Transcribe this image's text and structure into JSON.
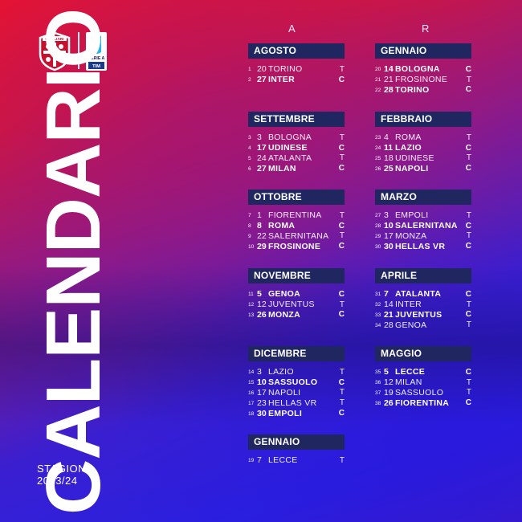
{
  "title": "CALENDARIO",
  "season": {
    "line1": "STAGIONE",
    "line2": "2023/24"
  },
  "logos": {
    "club_text": "CAGLIARI",
    "league_line1": "SERIE A",
    "league_line2": "TIM"
  },
  "columns": {
    "left": "A",
    "right": "R"
  },
  "colors": {
    "month_header": "#1f2660",
    "red": "#e8132f",
    "blue": "#2a20e0"
  },
  "left": [
    {
      "name": "AGOSTO",
      "matches": [
        {
          "round": "1",
          "day": "20",
          "team": "TORINO",
          "venue": "T"
        },
        {
          "round": "2",
          "day": "27",
          "team": "INTER",
          "venue": "C"
        }
      ]
    },
    {
      "name": "SETTEMBRE",
      "matches": [
        {
          "round": "3",
          "day": "3",
          "team": "BOLOGNA",
          "venue": "T"
        },
        {
          "round": "4",
          "day": "17",
          "team": "UDINESE",
          "venue": "C"
        },
        {
          "round": "5",
          "day": "24",
          "team": "ATALANTA",
          "venue": "T"
        },
        {
          "round": "6",
          "day": "27",
          "team": "MILAN",
          "venue": "C"
        }
      ]
    },
    {
      "name": "OTTOBRE",
      "matches": [
        {
          "round": "7",
          "day": "1",
          "team": "FIORENTINA",
          "venue": "T"
        },
        {
          "round": "8",
          "day": "8",
          "team": "ROMA",
          "venue": "C"
        },
        {
          "round": "9",
          "day": "22",
          "team": "SALERNITANA",
          "venue": "T"
        },
        {
          "round": "10",
          "day": "29",
          "team": "FROSINONE",
          "venue": "C"
        }
      ]
    },
    {
      "name": "NOVEMBRE",
      "matches": [
        {
          "round": "11",
          "day": "5",
          "team": "GENOA",
          "venue": "C"
        },
        {
          "round": "12",
          "day": "12",
          "team": "JUVENTUS",
          "venue": "T"
        },
        {
          "round": "13",
          "day": "26",
          "team": "MONZA",
          "venue": "C"
        }
      ]
    },
    {
      "name": "DICEMBRE",
      "matches": [
        {
          "round": "14",
          "day": "3",
          "team": "LAZIO",
          "venue": "T"
        },
        {
          "round": "15",
          "day": "10",
          "team": "SASSUOLO",
          "venue": "C"
        },
        {
          "round": "16",
          "day": "17",
          "team": "NAPOLI",
          "venue": "T"
        },
        {
          "round": "17",
          "day": "23",
          "team": "HELLAS VR",
          "venue": "T"
        },
        {
          "round": "18",
          "day": "30",
          "team": "EMPOLI",
          "venue": "C"
        }
      ]
    },
    {
      "name": "GENNAIO",
      "matches": [
        {
          "round": "19",
          "day": "7",
          "team": "LECCE",
          "venue": "T"
        }
      ]
    }
  ],
  "right": [
    {
      "name": "GENNAIO",
      "matches": [
        {
          "round": "20",
          "day": "14",
          "team": "BOLOGNA",
          "venue": "C"
        },
        {
          "round": "21",
          "day": "21",
          "team": "FROSINONE",
          "venue": "T"
        },
        {
          "round": "22",
          "day": "28",
          "team": "TORINO",
          "venue": "C"
        }
      ]
    },
    {
      "name": "FEBBRAIO",
      "matches": [
        {
          "round": "23",
          "day": "4",
          "team": "ROMA",
          "venue": "T"
        },
        {
          "round": "24",
          "day": "11",
          "team": "LAZIO",
          "venue": "C"
        },
        {
          "round": "25",
          "day": "18",
          "team": "UDINESE",
          "venue": "T"
        },
        {
          "round": "26",
          "day": "25",
          "team": "NAPOLI",
          "venue": "C"
        }
      ]
    },
    {
      "name": "MARZO",
      "matches": [
        {
          "round": "27",
          "day": "3",
          "team": "EMPOLI",
          "venue": "T"
        },
        {
          "round": "28",
          "day": "10",
          "team": "SALERNITANA",
          "venue": "C"
        },
        {
          "round": "29",
          "day": "17",
          "team": "MONZA",
          "venue": "T"
        },
        {
          "round": "30",
          "day": "30",
          "team": "HELLAS VR",
          "venue": "C"
        }
      ]
    },
    {
      "name": "APRILE",
      "matches": [
        {
          "round": "31",
          "day": "7",
          "team": "ATALANTA",
          "venue": "C"
        },
        {
          "round": "32",
          "day": "14",
          "team": "INTER",
          "venue": "T"
        },
        {
          "round": "33",
          "day": "21",
          "team": "JUVENTUS",
          "venue": "C"
        },
        {
          "round": "34",
          "day": "28",
          "team": "GENOA",
          "venue": "T"
        }
      ]
    },
    {
      "name": "MAGGIO",
      "matches": [
        {
          "round": "35",
          "day": "5",
          "team": "LECCE",
          "venue": "C"
        },
        {
          "round": "36",
          "day": "12",
          "team": "MILAN",
          "venue": "T"
        },
        {
          "round": "37",
          "day": "19",
          "team": "SASSUOLO",
          "venue": "T"
        },
        {
          "round": "38",
          "day": "26",
          "team": "FIORENTINA",
          "venue": "C"
        }
      ]
    }
  ]
}
